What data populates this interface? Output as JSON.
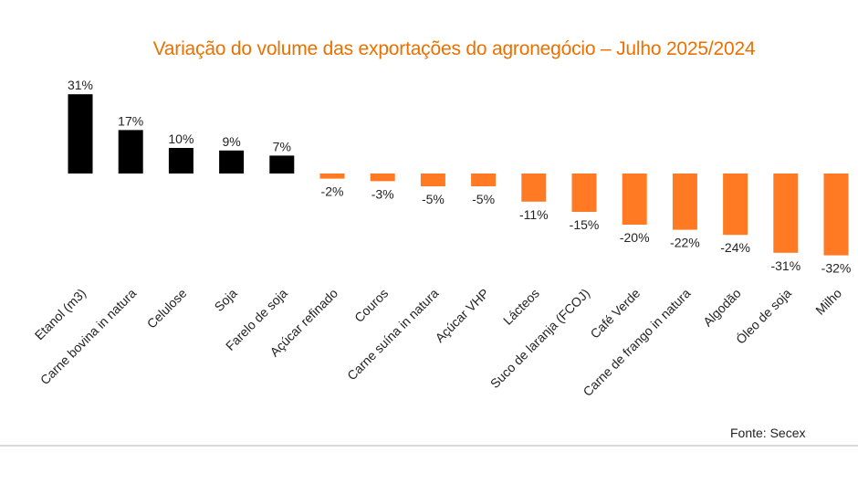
{
  "chart_data": {
    "type": "bar",
    "title": "Variação do volume das exportações do agronegócio – Julho 2025/2024",
    "xlabel": "",
    "ylabel": "",
    "ylim": [
      -32,
      31
    ],
    "grid": false,
    "legend": "none",
    "value_suffix": "%",
    "categories": [
      "Etanol (m3)",
      "Carne bovina in natura",
      "Celulose",
      "Soja",
      "Farelo de soja",
      "Açúcar refinado",
      "Couros",
      "Carne suína in natura",
      "Açúcar VHP",
      "Lácteos",
      "Suco de laranja (FCOJ)",
      "Café Verde",
      "Carne de frango in natura",
      "Algodão",
      "Óleo de soja",
      "Milho"
    ],
    "values": [
      31,
      17,
      10,
      9,
      7,
      -2,
      -3,
      -5,
      -5,
      -11,
      -15,
      -20,
      -22,
      -24,
      -31,
      -32
    ],
    "colors": {
      "positive": "#000000",
      "negative": "#FF7A22",
      "title": "#EC7000"
    }
  },
  "source_note": "Fonte: Secex"
}
